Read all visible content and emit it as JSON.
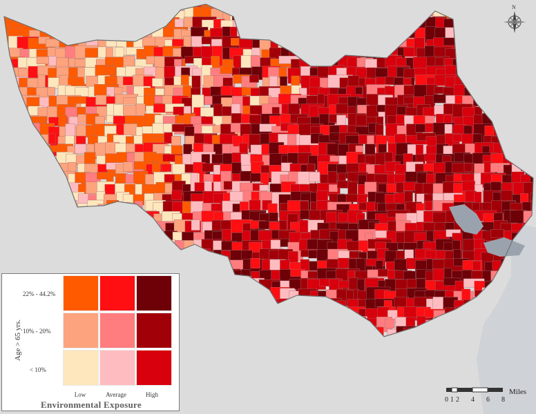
{
  "map": {
    "colors": {
      "background": "#dcdcdc",
      "water": "#9aa3ad",
      "boundary": "#6f6f6f",
      "tract_border": "#a07070"
    }
  },
  "legend": {
    "title": "Environmental Exposure",
    "y_axis_title": "Age > 65 yrs.",
    "rows": [
      "22% - 44.2%",
      "10% - 20%",
      "< 10%"
    ],
    "columns": [
      "Low",
      "Average",
      "High"
    ],
    "matrix": [
      [
        "#ff5a00",
        "#ff0e12",
        "#6e0008"
      ],
      [
        "#fda37d",
        "#ff7d7f",
        "#a20008"
      ],
      [
        "#fee6bd",
        "#ffbcc0",
        "#d7000c"
      ]
    ]
  },
  "compass": {
    "north": "N"
  },
  "scale_bar": {
    "unit": "Miles",
    "ticks": [
      "0",
      "1",
      "2",
      "4",
      "6",
      "8"
    ]
  }
}
